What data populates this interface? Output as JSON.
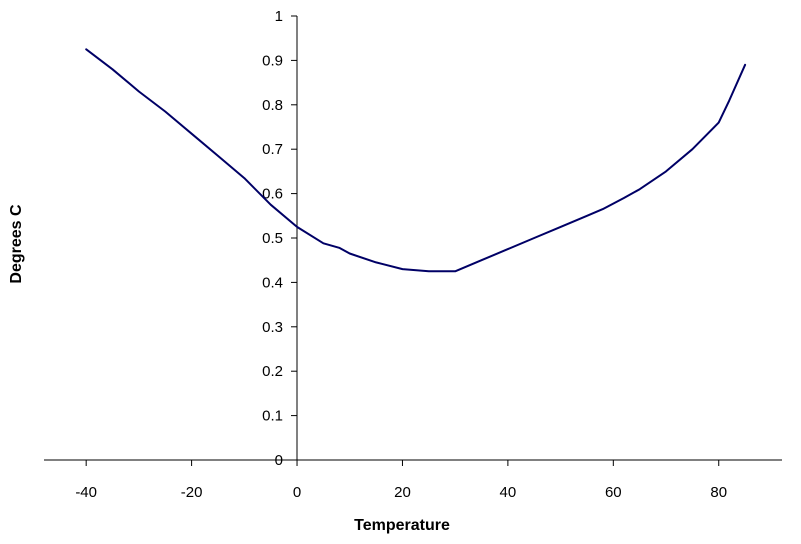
{
  "chart_data": {
    "type": "line",
    "title": "",
    "xlabel": "Temperature",
    "ylabel": "Degrees C",
    "xlim": [
      -48,
      92
    ],
    "ylim": [
      0,
      1
    ],
    "x_ticks": [
      -40,
      -20,
      0,
      20,
      40,
      60,
      80
    ],
    "y_ticks": [
      0,
      0.1,
      0.2,
      0.3,
      0.4,
      0.5,
      0.6,
      0.7,
      0.8,
      0.9,
      1
    ],
    "x_tick_labels": [
      "-40",
      "-20",
      "0",
      "20",
      "40",
      "60",
      "80"
    ],
    "y_tick_labels": [
      "0",
      "0.1",
      "0.2",
      "0.3",
      "0.4",
      "0.5",
      "0.6",
      "0.7",
      "0.8",
      "0.9",
      "1"
    ],
    "grid": false,
    "legend": "none",
    "line_color": "#000066",
    "series": [
      {
        "x": [
          -40,
          -35,
          -30,
          -25,
          -20,
          -15,
          -10,
          -5,
          0,
          5,
          8,
          10,
          15,
          20,
          25,
          30,
          35,
          40,
          45,
          50,
          55,
          58,
          62,
          65,
          70,
          75,
          80,
          82,
          85
        ],
        "values": [
          0.925,
          0.88,
          0.83,
          0.785,
          0.735,
          0.685,
          0.635,
          0.575,
          0.525,
          0.488,
          0.478,
          0.465,
          0.445,
          0.43,
          0.425,
          0.425,
          0.45,
          0.475,
          0.5,
          0.525,
          0.55,
          0.565,
          0.59,
          0.61,
          0.65,
          0.7,
          0.76,
          0.81,
          0.89
        ]
      }
    ]
  }
}
